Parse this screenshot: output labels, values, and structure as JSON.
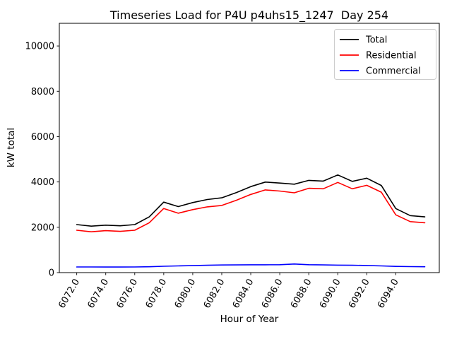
{
  "title": "Timeseries Load for P4U p4uhs15_1247  Day 254",
  "chart_data": {
    "type": "line",
    "title": "Timeseries Load for P4U p4uhs15_1247  Day 254",
    "xlabel": "Hour of Year",
    "ylabel": "kW total",
    "xlim": [
      6070.8,
      6097.0
    ],
    "ylim": [
      0,
      11000
    ],
    "grid": false,
    "legend_position": "upper right",
    "x_ticks": [
      6072,
      6074,
      6076,
      6078,
      6080,
      6082,
      6084,
      6086,
      6088,
      6090,
      6092,
      6094
    ],
    "x_tick_labels": [
      "6072.0",
      "6074.0",
      "6076.0",
      "6078.0",
      "6080.0",
      "6082.0",
      "6084.0",
      "6086.0",
      "6088.0",
      "6090.0",
      "6092.0",
      "6094.0"
    ],
    "y_ticks": [
      0,
      2000,
      4000,
      6000,
      8000,
      10000
    ],
    "y_tick_labels": [
      "0",
      "2000",
      "4000",
      "6000",
      "8000",
      "10000"
    ],
    "x": [
      6072,
      6073,
      6074,
      6075,
      6076,
      6077,
      6078,
      6079,
      6080,
      6081,
      6082,
      6083,
      6084,
      6085,
      6086,
      6087,
      6088,
      6089,
      6090,
      6091,
      6092,
      6093,
      6094,
      6095,
      6096
    ],
    "series": [
      {
        "name": "Total",
        "color": "#000000",
        "values": [
          2120,
          2050,
          2095,
          2065,
          2120,
          2460,
          3110,
          2915,
          3090,
          3225,
          3300,
          3530,
          3795,
          3995,
          3950,
          3900,
          4070,
          4040,
          4310,
          4025,
          4165,
          3845,
          2825,
          2515,
          2460
        ]
      },
      {
        "name": "Residential",
        "color": "#ff0000",
        "values": [
          1870,
          1800,
          1850,
          1820,
          1870,
          2200,
          2830,
          2620,
          2780,
          2900,
          2965,
          3190,
          3450,
          3650,
          3600,
          3520,
          3720,
          3700,
          3980,
          3700,
          3850,
          3550,
          2550,
          2250,
          2200
        ]
      },
      {
        "name": "Commercial",
        "color": "#0000ff",
        "values": [
          250,
          250,
          245,
          245,
          250,
          260,
          280,
          295,
          310,
          325,
          335,
          340,
          345,
          345,
          350,
          380,
          350,
          340,
          330,
          325,
          315,
          295,
          275,
          265,
          260
        ]
      }
    ],
    "legend": {
      "entries": [
        "Total",
        "Residential",
        "Commercial"
      ],
      "frame_color": "#cccccc",
      "background": "#ffffff"
    }
  }
}
